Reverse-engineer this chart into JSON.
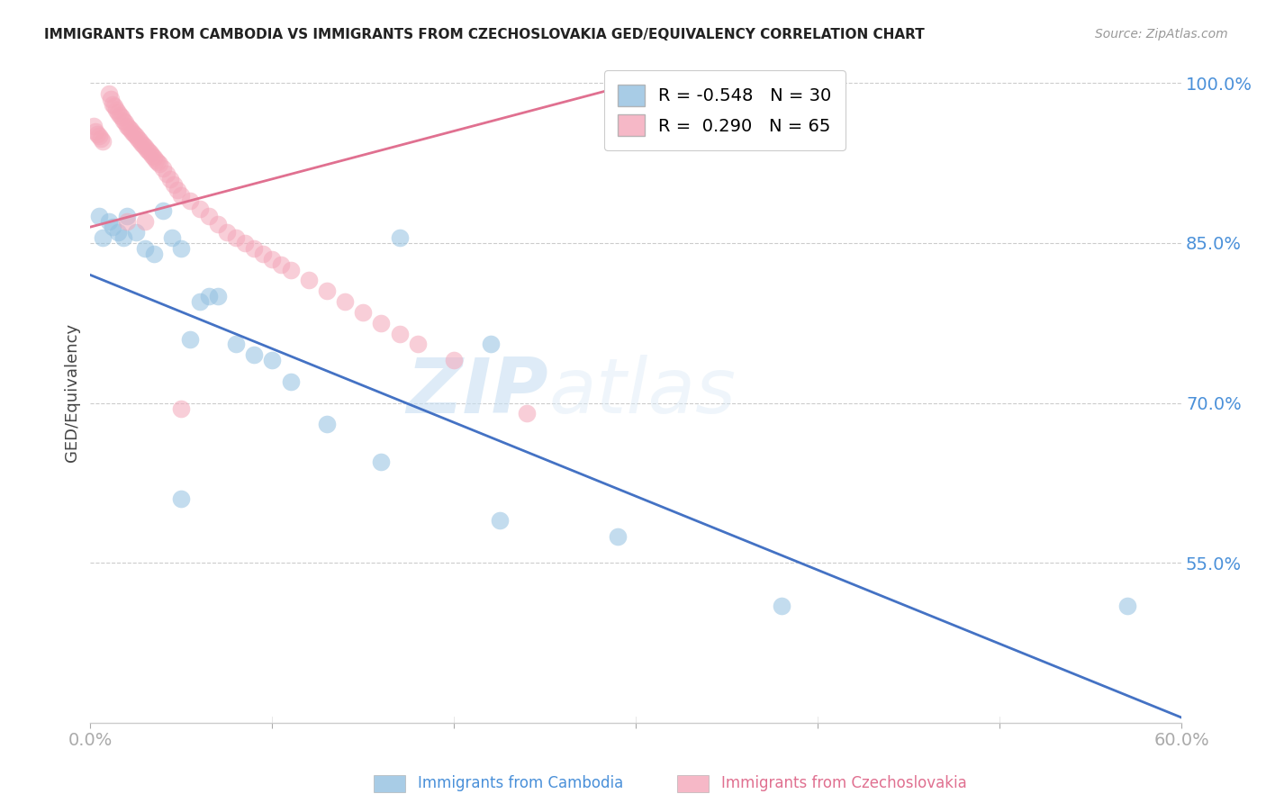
{
  "title": "IMMIGRANTS FROM CAMBODIA VS IMMIGRANTS FROM CZECHOSLOVAKIA GED/EQUIVALENCY CORRELATION CHART",
  "source": "Source: ZipAtlas.com",
  "ylabel": "GED/Equivalency",
  "watermark_zip": "ZIP",
  "watermark_atlas": "atlas",
  "background_color": "#ffffff",
  "xlim": [
    0.0,
    0.6
  ],
  "ylim": [
    0.4,
    1.02
  ],
  "yticks": [
    0.55,
    0.7,
    0.85,
    1.0
  ],
  "ytick_labels": [
    "55.0%",
    "70.0%",
    "85.0%",
    "100.0%"
  ],
  "xticks": [
    0.0,
    0.1,
    0.2,
    0.3,
    0.4,
    0.5,
    0.6
  ],
  "xtick_labels": [
    "0.0%",
    "",
    "",
    "",
    "",
    "",
    "60.0%"
  ],
  "series1_color": "#92c0e0",
  "series2_color": "#f4a7b9",
  "series1_label": "Immigrants from Cambodia",
  "series2_label": "Immigrants from Czechoslovakia",
  "R1": "-0.548",
  "N1": "30",
  "R2": "0.290",
  "N2": "65",
  "line1_color": "#4472c4",
  "line2_color": "#e07090",
  "line1_x0": 0.0,
  "line1_y0": 0.82,
  "line1_x1": 0.6,
  "line1_y1": 0.405,
  "line2_x0": 0.0,
  "line2_y0": 0.865,
  "line2_x1": 0.3,
  "line2_y1": 1.0,
  "cambodia_x": [
    0.005,
    0.007,
    0.01,
    0.012,
    0.015,
    0.018,
    0.02,
    0.025,
    0.03,
    0.035,
    0.04,
    0.045,
    0.05,
    0.055,
    0.06,
    0.065,
    0.07,
    0.08,
    0.09,
    0.1,
    0.11,
    0.13,
    0.16,
    0.17,
    0.22,
    0.225,
    0.29,
    0.38,
    0.57,
    0.05
  ],
  "cambodia_y": [
    0.875,
    0.855,
    0.87,
    0.865,
    0.86,
    0.855,
    0.875,
    0.86,
    0.845,
    0.84,
    0.88,
    0.855,
    0.845,
    0.76,
    0.795,
    0.8,
    0.8,
    0.755,
    0.745,
    0.74,
    0.72,
    0.68,
    0.645,
    0.855,
    0.755,
    0.59,
    0.575,
    0.51,
    0.51,
    0.61
  ],
  "czechoslovakia_x": [
    0.002,
    0.003,
    0.004,
    0.005,
    0.006,
    0.007,
    0.01,
    0.011,
    0.012,
    0.013,
    0.014,
    0.015,
    0.016,
    0.017,
    0.018,
    0.019,
    0.02,
    0.021,
    0.022,
    0.023,
    0.024,
    0.025,
    0.026,
    0.027,
    0.028,
    0.029,
    0.03,
    0.031,
    0.032,
    0.033,
    0.034,
    0.035,
    0.036,
    0.037,
    0.038,
    0.04,
    0.042,
    0.044,
    0.046,
    0.048,
    0.05,
    0.055,
    0.06,
    0.065,
    0.07,
    0.075,
    0.08,
    0.085,
    0.09,
    0.095,
    0.1,
    0.105,
    0.11,
    0.12,
    0.13,
    0.14,
    0.15,
    0.16,
    0.17,
    0.18,
    0.2,
    0.24,
    0.05,
    0.02,
    0.03
  ],
  "czechoslovakia_y": [
    0.96,
    0.955,
    0.952,
    0.95,
    0.948,
    0.945,
    0.99,
    0.985,
    0.98,
    0.978,
    0.975,
    0.972,
    0.97,
    0.968,
    0.965,
    0.963,
    0.96,
    0.958,
    0.956,
    0.954,
    0.952,
    0.95,
    0.948,
    0.946,
    0.944,
    0.942,
    0.94,
    0.938,
    0.936,
    0.934,
    0.932,
    0.93,
    0.928,
    0.926,
    0.924,
    0.92,
    0.915,
    0.91,
    0.905,
    0.9,
    0.895,
    0.89,
    0.882,
    0.875,
    0.868,
    0.86,
    0.855,
    0.85,
    0.845,
    0.84,
    0.835,
    0.83,
    0.825,
    0.815,
    0.805,
    0.795,
    0.785,
    0.775,
    0.765,
    0.755,
    0.74,
    0.69,
    0.695,
    0.87,
    0.87
  ]
}
